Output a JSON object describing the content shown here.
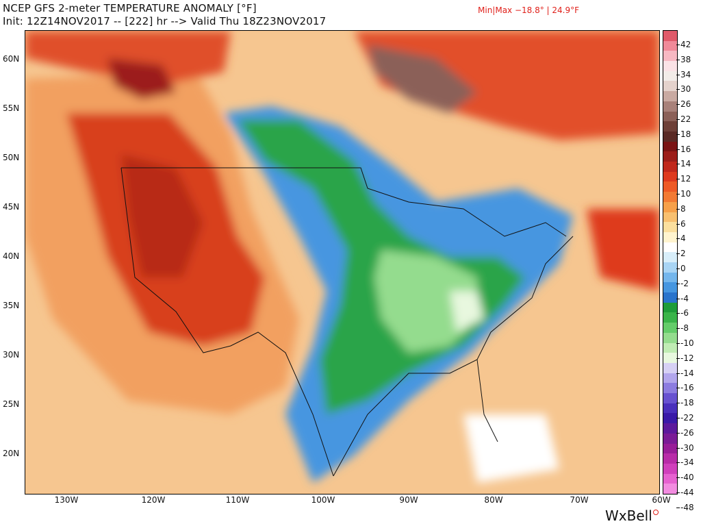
{
  "header": {
    "title": "NCEP GFS 2-meter TEMPERATURE ANOMALY [°F]",
    "subtitle": "Init: 12Z14NOV2017 -- [222] hr --> Valid Thu 18Z23NOV2017",
    "minmax": "Min|Max −18.8° | 24.9°F"
  },
  "map": {
    "lat_labels": [
      "60N",
      "55N",
      "50N",
      "45N",
      "40N",
      "35N",
      "30N",
      "25N",
      "20N"
    ],
    "lon_labels": [
      "130W",
      "120W",
      "110W",
      "100W",
      "90W",
      "80W",
      "70W",
      "60W"
    ]
  },
  "colorbar": {
    "labels": [
      "42",
      "38",
      "34",
      "30",
      "26",
      "22",
      "18",
      "16",
      "14",
      "12",
      "10",
      "8",
      "6",
      "4",
      "2",
      "0",
      "-2",
      "-4",
      "-6",
      "-8",
      "-10",
      "-12",
      "-14",
      "-16",
      "-18",
      "-22",
      "-26",
      "-30",
      "-34",
      "-40",
      "-44",
      "-48"
    ],
    "colors": [
      "#e05a6a",
      "#f08a99",
      "#f7b8c2",
      "#fbe2e6",
      "#f2ece8",
      "#e4d2cc",
      "#c9aaa2",
      "#a8817a",
      "#8b6058",
      "#6e4038",
      "#5a2a25",
      "#7a1414",
      "#9c1e1a",
      "#c0281c",
      "#de3a1e",
      "#ee5a26",
      "#f27a34",
      "#f6a04a",
      "#f8c070",
      "#fbdf9e",
      "#fff4cf",
      "#ffffff",
      "#d8eefa",
      "#a8d4f4",
      "#74b6ec",
      "#4696e0",
      "#2a74cc",
      "#1f9c3a",
      "#3ab44a",
      "#64cc6a",
      "#94dc8e",
      "#c0ecb4",
      "#e8f8df",
      "#d6d0f4",
      "#b2a6ec",
      "#8c7ce0",
      "#6852d0",
      "#4a30bc",
      "#3a1aa8",
      "#5c1a9c",
      "#7a1c96",
      "#981e98",
      "#b82ca8",
      "#d040bc",
      "#e662d0",
      "#f28ce0"
    ]
  },
  "brand": {
    "name": "WxBell"
  }
}
